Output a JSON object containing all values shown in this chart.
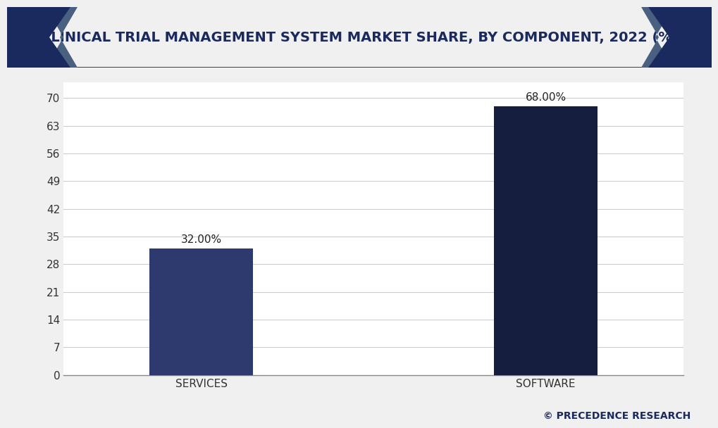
{
  "categories": [
    "SERVICES",
    "SOFTWARE"
  ],
  "values": [
    32.0,
    68.0
  ],
  "bar_labels": [
    "32.00%",
    "68.00%"
  ],
  "bar_colors": [
    "#2e3a6e",
    "#151e3f"
  ],
  "title": "CLINICAL TRIAL MANAGEMENT SYSTEM MARKET SHARE, BY COMPONENT, 2022 (%)",
  "yticks": [
    0,
    7,
    14,
    21,
    28,
    35,
    42,
    49,
    56,
    63,
    70
  ],
  "ylim": [
    0,
    74
  ],
  "background_color": "#f0f0f0",
  "plot_bg_color": "#ffffff",
  "grid_color": "#cccccc",
  "title_bg_color": "#ffffff",
  "title_text_color": "#1a2a5e",
  "title_border_color": "#1a2a5e",
  "corner_dark_color": "#1a2a5e",
  "corner_mid_color": "#4a6080",
  "watermark": "© PRECEDENCE RESEARCH",
  "watermark_color": "#1a2a5e",
  "title_fontsize": 14,
  "bar_label_fontsize": 11,
  "tick_label_fontsize": 11,
  "xlabel_fontsize": 11,
  "watermark_fontsize": 10
}
